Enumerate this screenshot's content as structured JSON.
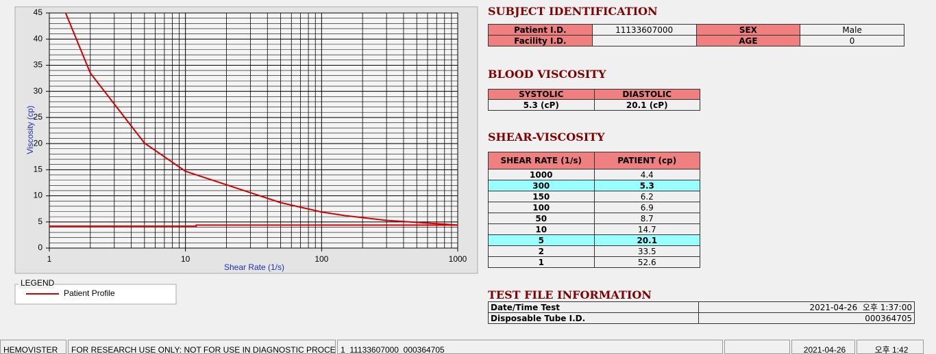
{
  "chart_data": {
    "type": "line",
    "x_label": "Shear Rate (1/s)",
    "y_label": "Viscosity (cp)",
    "xscale": "log",
    "xlim": [
      1,
      1000
    ],
    "xticks": [
      1,
      10,
      100,
      1000
    ],
    "ylim": [
      0,
      45
    ],
    "yticks": [
      0,
      5,
      10,
      15,
      20,
      25,
      30,
      35,
      40,
      45
    ],
    "grid": true,
    "legend_title": "LEGEND",
    "series": [
      {
        "name": "Patient Profile",
        "color": "#d40000",
        "x": [
          1,
          2,
          5,
          10,
          50,
          100,
          150,
          300,
          1000
        ],
        "values": [
          52.6,
          33.5,
          20.1,
          14.7,
          8.7,
          6.9,
          6.2,
          5.3,
          4.4
        ]
      },
      {
        "color": "#d40000",
        "x": [
          1,
          12,
          12,
          1000
        ],
        "values": [
          4.2,
          4.2,
          4.4,
          4.4
        ]
      }
    ]
  },
  "subject": {
    "title": "SUBJECT IDENTIFICATION",
    "rows": [
      [
        {
          "label": "Patient I.D.",
          "value": "11133607000"
        },
        {
          "label": "SEX",
          "value": "Male"
        }
      ],
      [
        {
          "label": "Facility I.D."
        },
        {
          "label": "AGE",
          "value": "0"
        }
      ]
    ]
  },
  "blood": {
    "title": "BLOOD VISCOSITY",
    "headers": [
      "SYSTOLIC",
      "DIASTOLIC"
    ],
    "values": [
      "5.3 (cP)",
      "20.1 (cP)"
    ]
  },
  "shear": {
    "title": "SHEAR-VISCOSITY",
    "headers": [
      "SHEAR RATE (1/s)",
      "PATIENT (cp)"
    ],
    "highlight": [
      1,
      6
    ],
    "rows": [
      [
        "1000",
        "4.4"
      ],
      [
        "300",
        "5.3"
      ],
      [
        "150",
        "6.2"
      ],
      [
        "100",
        "6.9"
      ],
      [
        "50",
        "8.7"
      ],
      [
        "10",
        "14.7"
      ],
      [
        "5",
        "20.1"
      ],
      [
        "2",
        "33.5"
      ],
      [
        "1",
        "52.6"
      ]
    ]
  },
  "test_file": {
    "title": "TEST FILE INFORMATION",
    "rows": [
      [
        "Date/Time Test",
        "2021-04-26  오후 1:37:00"
      ],
      [
        "Disposable Tube I.D.",
        "000364705"
      ]
    ]
  },
  "status_bar": [
    "HEMOVISTER",
    "FOR RESEARCH USE ONLY: NOT FOR USE IN DIAGNOSTIC PROCEDURES",
    "1  11133607000  000364705",
    "2021-04-26",
    "오후 1:42"
  ]
}
